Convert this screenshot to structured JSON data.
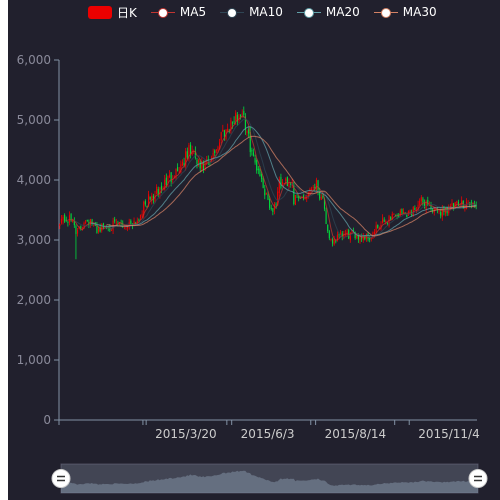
{
  "legend": {
    "items": [
      {
        "label": "日K",
        "kind": "k",
        "color": "#ec0000"
      },
      {
        "label": "MA5",
        "kind": "line",
        "color": "#c23531"
      },
      {
        "label": "MA10",
        "kind": "line",
        "color": "#2f4554"
      },
      {
        "label": "MA20",
        "kind": "line",
        "color": "#61a0a8"
      },
      {
        "label": "MA30",
        "kind": "line",
        "color": "#d48265"
      }
    ]
  },
  "colors": {
    "background": "#21202d",
    "up": "#ec0000",
    "down": "#00da3c",
    "axis": "#8392a5",
    "slider_fill": "#8392a5"
  },
  "chart_data": {
    "type": "candlestick",
    "title": "",
    "xlabel": "",
    "ylabel": "",
    "ylim": [
      0,
      6000
    ],
    "y_ticks": [
      0,
      1000,
      2000,
      3000,
      4000,
      5000,
      6000
    ],
    "y_tick_labels": [
      "0",
      "1,000",
      "2,000",
      "3,000",
      "4,000",
      "5,000",
      "6,000"
    ],
    "x_tick_labels": [
      "2015/3/20",
      "2015/6/3",
      "2015/8/14",
      "2015/11/4"
    ],
    "date_range": [
      "2015/1/5",
      "2015/12/31"
    ],
    "grid": false,
    "legend_position": "top",
    "series": [
      {
        "name": "日K",
        "type": "candlestick"
      },
      {
        "name": "MA5",
        "type": "line"
      },
      {
        "name": "MA10",
        "type": "line"
      },
      {
        "name": "MA20",
        "type": "line"
      },
      {
        "name": "MA30",
        "type": "line"
      }
    ],
    "close_anchors": [
      [
        "2015/1/5",
        3350
      ],
      [
        "2015/1/15",
        3330
      ],
      [
        "2015/1/20",
        3120
      ],
      [
        "2015/1/27",
        3360
      ],
      [
        "2015/2/5",
        3180
      ],
      [
        "2015/2/17",
        3240
      ],
      [
        "2015/3/2",
        3250
      ],
      [
        "2015/3/12",
        3330
      ],
      [
        "2015/3/20",
        3620
      ],
      [
        "2015/3/30",
        3790
      ],
      [
        "2015/4/10",
        4050
      ],
      [
        "2015/4/20",
        4260
      ],
      [
        "2015/4/27",
        4520
      ],
      [
        "2015/5/6",
        4200
      ],
      [
        "2015/5/15",
        4300
      ],
      [
        "2015/5/25",
        4780
      ],
      [
        "2015/6/3",
        4970
      ],
      [
        "2015/6/12",
        5150
      ],
      [
        "2015/6/19",
        4480
      ],
      [
        "2015/6/26",
        4140
      ],
      [
        "2015/7/3",
        3700
      ],
      [
        "2015/7/8",
        3500
      ],
      [
        "2015/7/14",
        3920
      ],
      [
        "2015/7/24",
        4000
      ],
      [
        "2015/7/27",
        3660
      ],
      [
        "2015/8/4",
        3720
      ],
      [
        "2015/8/14",
        3960
      ],
      [
        "2015/8/20",
        3700
      ],
      [
        "2015/8/26",
        2960
      ],
      [
        "2015/9/7",
        3080
      ],
      [
        "2015/9/18",
        3090
      ],
      [
        "2015/9/30",
        3050
      ],
      [
        "2015/10/12",
        3290
      ],
      [
        "2015/10/20",
        3420
      ],
      [
        "2015/11/4",
        3460
      ],
      [
        "2015/11/13",
        3630
      ],
      [
        "2015/11/20",
        3600
      ],
      [
        "2015/11/27",
        3440
      ],
      [
        "2015/12/4",
        3520
      ],
      [
        "2015/12/14",
        3560
      ],
      [
        "2015/12/23",
        3640
      ],
      [
        "2015/12/31",
        3540
      ]
    ]
  },
  "data_zoom": {
    "start": 0,
    "end": 100
  }
}
